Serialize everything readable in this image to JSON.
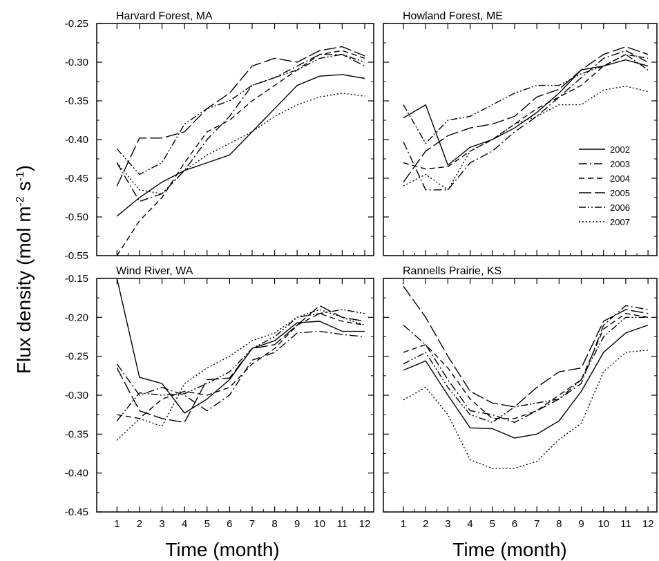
{
  "figure": {
    "ylabel_main": "Flux density (mol m",
    "ylabel_sup1": "-2",
    "ylabel_mid": " s",
    "ylabel_sup2": "-1",
    "ylabel_end": ")",
    "xlabel_left": "Time (month)",
    "xlabel_right": "Time (month)"
  },
  "legend": {
    "placement": "right, inside Howland Forest panel",
    "entries": [
      {
        "label": "2002",
        "dash": "solid"
      },
      {
        "label": "2003",
        "dash": "dash-dot"
      },
      {
        "label": "2004",
        "dash": "dash"
      },
      {
        "label": "2005",
        "dash": "long-dash"
      },
      {
        "label": "2006",
        "dash": "dash-dot-dot"
      },
      {
        "label": "2007",
        "dash": "dot"
      }
    ]
  },
  "chart_data": [
    {
      "type": "line",
      "title": "Harvard Forest, MA",
      "x": [
        1,
        2,
        3,
        4,
        5,
        6,
        7,
        8,
        9,
        10,
        11,
        12
      ],
      "xlim": [
        0.1,
        12.4
      ],
      "ylim": [
        -0.55,
        -0.25
      ],
      "yticks": [
        "-0.25",
        "-0.30",
        "-0.35",
        "-0.40",
        "-0.45",
        "-0.50",
        "-0.55"
      ],
      "xticks": [],
      "series": [
        {
          "name": "2002",
          "values": [
            -0.499,
            -0.475,
            -0.455,
            -0.44,
            -0.43,
            -0.42,
            -0.39,
            -0.36,
            -0.33,
            -0.318,
            -0.316,
            -0.321
          ]
        },
        {
          "name": "2003",
          "values": [
            -0.43,
            -0.48,
            -0.47,
            -0.44,
            -0.4,
            -0.37,
            -0.33,
            -0.32,
            -0.305,
            -0.29,
            -0.29,
            -0.305
          ]
        },
        {
          "name": "2004",
          "values": [
            -0.55,
            -0.505,
            -0.475,
            -0.43,
            -0.39,
            -0.375,
            -0.35,
            -0.33,
            -0.31,
            -0.29,
            -0.285,
            -0.295
          ]
        },
        {
          "name": "2005",
          "values": [
            -0.46,
            -0.398,
            -0.398,
            -0.39,
            -0.36,
            -0.34,
            -0.305,
            -0.295,
            -0.3,
            -0.285,
            -0.28,
            -0.292
          ]
        },
        {
          "name": "2006",
          "values": [
            -0.412,
            -0.445,
            -0.43,
            -0.38,
            -0.36,
            -0.35,
            -0.33,
            -0.32,
            -0.31,
            -0.295,
            -0.29,
            -0.3
          ]
        },
        {
          "name": "2007",
          "values": [
            -0.43,
            -0.465,
            -0.47,
            -0.44,
            -0.42,
            -0.405,
            -0.39,
            -0.37,
            -0.355,
            -0.345,
            -0.34,
            -0.344
          ]
        }
      ]
    },
    {
      "type": "line",
      "title": "Howland Forest, ME",
      "x": [
        1,
        2,
        3,
        4,
        5,
        6,
        7,
        8,
        9,
        10,
        11,
        12
      ],
      "xlim": [
        0.1,
        12.4
      ],
      "ylim": [
        -0.55,
        -0.25
      ],
      "yticks": [],
      "xticks": [],
      "series": [
        {
          "name": "2002",
          "values": [
            -0.372,
            -0.355,
            -0.433,
            -0.41,
            -0.4,
            -0.385,
            -0.365,
            -0.34,
            -0.31,
            -0.305,
            -0.297,
            -0.305
          ]
        },
        {
          "name": "2003",
          "values": [
            -0.403,
            -0.465,
            -0.465,
            -0.43,
            -0.415,
            -0.39,
            -0.37,
            -0.345,
            -0.32,
            -0.295,
            -0.285,
            -0.3
          ]
        },
        {
          "name": "2004",
          "values": [
            -0.43,
            -0.438,
            -0.435,
            -0.415,
            -0.4,
            -0.38,
            -0.36,
            -0.345,
            -0.33,
            -0.305,
            -0.29,
            -0.295
          ]
        },
        {
          "name": "2005",
          "values": [
            -0.455,
            -0.415,
            -0.395,
            -0.385,
            -0.38,
            -0.37,
            -0.345,
            -0.335,
            -0.31,
            -0.29,
            -0.28,
            -0.29
          ]
        },
        {
          "name": "2006",
          "values": [
            -0.355,
            -0.405,
            -0.375,
            -0.37,
            -0.355,
            -0.34,
            -0.33,
            -0.33,
            -0.315,
            -0.305,
            -0.29,
            -0.31
          ]
        },
        {
          "name": "2007",
          "values": [
            -0.46,
            -0.445,
            -0.465,
            -0.415,
            -0.4,
            -0.38,
            -0.37,
            -0.355,
            -0.355,
            -0.336,
            -0.331,
            -0.338
          ]
        }
      ]
    },
    {
      "type": "line",
      "title": "Wind River, WA",
      "x": [
        1,
        2,
        3,
        4,
        5,
        6,
        7,
        8,
        9,
        10,
        11,
        12
      ],
      "xlim": [
        0.1,
        12.4
      ],
      "ylim": [
        -0.45,
        -0.15
      ],
      "yticks": [
        "-0.15",
        "-0.20",
        "-0.25",
        "-0.30",
        "-0.35",
        "-0.40",
        "-0.45"
      ],
      "xticks": [
        "1",
        "2",
        "3",
        "4",
        "5",
        "6",
        "7",
        "8",
        "9",
        "10",
        "11",
        "12"
      ],
      "series": [
        {
          "name": "2002",
          "values": [
            -0.15,
            -0.277,
            -0.285,
            -0.323,
            -0.305,
            -0.28,
            -0.24,
            -0.23,
            -0.207,
            -0.205,
            -0.218,
            -0.218
          ]
        },
        {
          "name": "2003",
          "values": [
            -0.26,
            -0.3,
            -0.29,
            -0.3,
            -0.32,
            -0.3,
            -0.255,
            -0.245,
            -0.22,
            -0.218,
            -0.222,
            -0.225
          ]
        },
        {
          "name": "2004",
          "values": [
            -0.325,
            -0.33,
            -0.305,
            -0.295,
            -0.3,
            -0.29,
            -0.26,
            -0.24,
            -0.21,
            -0.195,
            -0.205,
            -0.21
          ]
        },
        {
          "name": "2005",
          "values": [
            -0.265,
            -0.32,
            -0.33,
            -0.335,
            -0.28,
            -0.278,
            -0.24,
            -0.235,
            -0.21,
            -0.185,
            -0.2,
            -0.205
          ]
        },
        {
          "name": "2006",
          "values": [
            -0.333,
            -0.297,
            -0.3,
            -0.298,
            -0.285,
            -0.27,
            -0.24,
            -0.225,
            -0.2,
            -0.195,
            -0.19,
            -0.195
          ]
        },
        {
          "name": "2007",
          "values": [
            -0.358,
            -0.33,
            -0.34,
            -0.285,
            -0.265,
            -0.25,
            -0.23,
            -0.22,
            -0.2,
            -0.19,
            -0.2,
            -0.21
          ]
        }
      ]
    },
    {
      "type": "line",
      "title": "Rannells Prairie, KS",
      "x": [
        1,
        2,
        3,
        4,
        5,
        6,
        7,
        8,
        9,
        10,
        11,
        12
      ],
      "xlim": [
        0.1,
        12.4
      ],
      "ylim": [
        -0.45,
        -0.15
      ],
      "yticks": [],
      "xticks": [
        "1",
        "2",
        "3",
        "4",
        "5",
        "6",
        "7",
        "8",
        "9",
        "10",
        "11",
        "12"
      ],
      "series": [
        {
          "name": "2002",
          "values": [
            -0.268,
            -0.256,
            -0.3,
            -0.342,
            -0.343,
            -0.355,
            -0.35,
            -0.333,
            -0.295,
            -0.245,
            -0.22,
            -0.21
          ]
        },
        {
          "name": "2003",
          "values": [
            -0.21,
            -0.235,
            -0.28,
            -0.32,
            -0.325,
            -0.335,
            -0.32,
            -0.305,
            -0.285,
            -0.21,
            -0.185,
            -0.19
          ]
        },
        {
          "name": "2004",
          "values": [
            -0.245,
            -0.235,
            -0.265,
            -0.305,
            -0.33,
            -0.33,
            -0.32,
            -0.3,
            -0.28,
            -0.215,
            -0.195,
            -0.2
          ]
        },
        {
          "name": "2005",
          "values": [
            -0.16,
            -0.2,
            -0.25,
            -0.295,
            -0.31,
            -0.315,
            -0.29,
            -0.27,
            -0.265,
            -0.205,
            -0.19,
            -0.195
          ]
        },
        {
          "name": "2006",
          "values": [
            -0.26,
            -0.245,
            -0.29,
            -0.325,
            -0.335,
            -0.315,
            -0.31,
            -0.305,
            -0.28,
            -0.225,
            -0.2,
            -0.2
          ]
        },
        {
          "name": "2007",
          "values": [
            -0.306,
            -0.29,
            -0.325,
            -0.383,
            -0.394,
            -0.394,
            -0.385,
            -0.357,
            -0.336,
            -0.27,
            -0.245,
            -0.242
          ]
        }
      ]
    }
  ]
}
